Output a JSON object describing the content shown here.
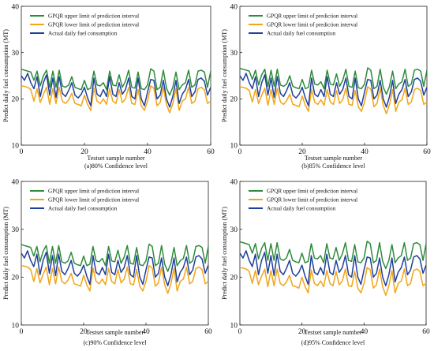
{
  "colors": {
    "upper": "#2e8b3a",
    "lower": "#f2a516",
    "actual": "#1f3f9a",
    "axis": "#222222"
  },
  "chart_data": [
    {
      "type": "line",
      "caption": "(a)80% Confidence level",
      "xlabel": "Testset sample number",
      "ylabel": "Predict daily fuel consumption (MT)",
      "xlim": [
        0,
        60
      ],
      "ylim": [
        10,
        40
      ],
      "xticks": [
        0,
        20,
        40,
        60
      ],
      "yticks": [
        10,
        20,
        30,
        40
      ],
      "legend_position": "top-left",
      "series": [
        {
          "name": "GPQR upper limit of prediction interval",
          "values": [
            26.4,
            26.2,
            26.0,
            25.8,
            24.0,
            26.0,
            22.8,
            25.0,
            26.2,
            22.5,
            26.0,
            22.5,
            26.2,
            22.8,
            22.5,
            23.0,
            24.8,
            22.5,
            22.2,
            22.0,
            24.0,
            22.0,
            22.3,
            26.0,
            23.0,
            22.8,
            23.5,
            22.0,
            26.0,
            23.0,
            22.8,
            25.2,
            22.5,
            23.8,
            26.2,
            22.5,
            22.3,
            25.8,
            22.2,
            22.0,
            23.0,
            26.5,
            26.0,
            22.0,
            22.5,
            26.2,
            22.3,
            20.8,
            22.5,
            25.8,
            22.0,
            23.0,
            23.5,
            26.2,
            22.5,
            23.0,
            26.0,
            26.2,
            25.8,
            22.5,
            26.0
          ]
        },
        {
          "name": "GPQR lower limit of prediction interval",
          "values": [
            22.8,
            22.7,
            22.5,
            22.0,
            19.5,
            22.2,
            19.2,
            21.0,
            22.5,
            18.8,
            22.2,
            19.0,
            22.5,
            19.5,
            19.0,
            19.8,
            21.2,
            19.0,
            18.8,
            18.5,
            20.8,
            18.8,
            17.5,
            22.3,
            19.5,
            19.0,
            20.0,
            18.8,
            22.2,
            19.5,
            19.0,
            22.0,
            19.2,
            20.0,
            22.5,
            19.0,
            18.8,
            22.0,
            18.5,
            17.5,
            19.5,
            22.8,
            22.3,
            18.5,
            19.2,
            22.5,
            18.8,
            17.0,
            19.0,
            22.2,
            17.5,
            19.5,
            20.0,
            22.5,
            19.0,
            19.5,
            22.2,
            22.5,
            22.0,
            19.0,
            19.5
          ]
        },
        {
          "name": "Actual daily fuel consumption",
          "values": [
            25.0,
            24.0,
            25.5,
            23.5,
            22.2,
            24.8,
            20.5,
            23.5,
            25.2,
            20.8,
            24.5,
            20.3,
            24.8,
            21.2,
            20.5,
            21.8,
            23.5,
            20.8,
            20.2,
            21.0,
            22.5,
            20.2,
            18.5,
            24.5,
            21.0,
            20.5,
            22.0,
            20.5,
            24.8,
            21.0,
            20.5,
            23.5,
            21.0,
            22.0,
            24.5,
            20.5,
            20.0,
            24.5,
            20.0,
            18.5,
            21.5,
            24.2,
            24.0,
            20.0,
            20.8,
            24.0,
            20.0,
            18.2,
            20.5,
            24.0,
            19.0,
            21.0,
            22.0,
            24.2,
            20.5,
            21.5,
            24.2,
            24.5,
            23.8,
            20.8,
            22.5
          ]
        }
      ]
    },
    {
      "type": "line",
      "caption": "(b)85% Confidence level",
      "xlabel": "Testset sample number",
      "ylabel": "Predict daily fuel consumption (MT)",
      "xlim": [
        0,
        60
      ],
      "ylim": [
        10,
        40
      ],
      "xticks": [
        0,
        20,
        40,
        60
      ],
      "yticks": [
        10,
        20,
        30,
        40
      ],
      "legend_position": "top-left",
      "series": [
        {
          "name": "GPQR upper limit of prediction interval",
          "values": [
            26.6,
            26.4,
            26.2,
            26.0,
            24.2,
            26.2,
            23.0,
            25.2,
            26.4,
            22.7,
            26.2,
            22.7,
            26.4,
            23.0,
            22.7,
            23.2,
            25.0,
            22.7,
            22.4,
            22.2,
            24.2,
            22.2,
            22.5,
            26.2,
            23.2,
            23.0,
            23.7,
            22.2,
            26.2,
            23.2,
            23.0,
            25.4,
            22.7,
            24.0,
            26.4,
            22.7,
            22.5,
            26.0,
            22.4,
            22.2,
            23.2,
            26.7,
            26.2,
            22.2,
            22.7,
            26.4,
            22.5,
            21.0,
            22.7,
            26.0,
            22.2,
            23.2,
            23.7,
            26.4,
            22.7,
            23.2,
            26.2,
            26.4,
            26.0,
            22.7,
            26.2
          ]
        },
        {
          "name": "GPQR lower limit of prediction interval",
          "values": [
            22.6,
            22.5,
            22.3,
            21.8,
            19.3,
            22.0,
            19.0,
            20.8,
            22.3,
            18.6,
            22.0,
            18.8,
            22.3,
            19.3,
            18.8,
            19.6,
            21.0,
            18.8,
            18.6,
            18.3,
            20.6,
            18.6,
            17.3,
            22.1,
            19.3,
            18.8,
            19.8,
            18.6,
            22.0,
            19.3,
            18.8,
            21.8,
            19.0,
            19.8,
            22.3,
            18.8,
            18.6,
            21.8,
            18.3,
            17.3,
            19.3,
            22.6,
            22.1,
            18.3,
            19.0,
            22.3,
            18.6,
            16.8,
            18.8,
            22.0,
            17.3,
            19.3,
            19.8,
            22.3,
            18.8,
            19.3,
            22.0,
            22.3,
            21.8,
            18.8,
            19.3
          ]
        },
        {
          "name": "Actual daily fuel consumption",
          "values": [
            25.0,
            24.0,
            25.5,
            23.5,
            22.2,
            24.8,
            20.5,
            23.5,
            25.2,
            20.8,
            24.5,
            20.3,
            24.8,
            21.2,
            20.5,
            21.8,
            23.5,
            20.8,
            20.2,
            21.0,
            22.5,
            20.2,
            18.5,
            24.5,
            21.0,
            20.5,
            22.0,
            20.5,
            24.8,
            21.0,
            20.5,
            23.5,
            21.0,
            22.0,
            24.5,
            20.5,
            20.0,
            24.5,
            20.0,
            18.5,
            21.5,
            24.2,
            24.0,
            20.0,
            20.8,
            24.0,
            20.0,
            18.2,
            20.5,
            24.0,
            19.0,
            21.0,
            22.0,
            24.2,
            20.5,
            21.5,
            24.2,
            24.5,
            23.8,
            20.8,
            22.5
          ]
        }
      ]
    },
    {
      "type": "line",
      "caption": "(c)90% Confidence level",
      "xlabel": "Testset sample number",
      "ylabel": "Predict daily fuel consumption (MT)",
      "xlim": [
        0,
        60
      ],
      "ylim": [
        10,
        40
      ],
      "xticks": [
        0,
        20,
        40,
        60
      ],
      "yticks": [
        10,
        20,
        30,
        40
      ],
      "legend_position": "top-left",
      "series": [
        {
          "name": "GPQR upper limit of prediction interval",
          "values": [
            26.8,
            26.6,
            26.4,
            26.2,
            24.4,
            26.4,
            23.2,
            25.4,
            26.6,
            22.9,
            26.4,
            22.9,
            26.6,
            23.2,
            22.9,
            23.4,
            25.2,
            22.9,
            22.6,
            22.4,
            24.4,
            22.4,
            22.7,
            26.4,
            23.4,
            23.2,
            23.9,
            22.4,
            26.4,
            23.4,
            23.2,
            25.6,
            22.9,
            24.2,
            26.6,
            22.9,
            22.7,
            26.2,
            22.6,
            22.4,
            23.4,
            26.9,
            26.4,
            22.4,
            22.9,
            26.6,
            22.7,
            21.2,
            22.9,
            26.2,
            22.4,
            23.4,
            23.9,
            26.6,
            22.9,
            23.4,
            26.4,
            26.6,
            26.2,
            22.9,
            26.4
          ]
        },
        {
          "name": "GPQR lower limit of prediction interval",
          "values": [
            22.4,
            22.3,
            22.1,
            21.6,
            19.1,
            21.8,
            18.8,
            20.6,
            22.1,
            18.4,
            21.8,
            18.6,
            22.1,
            19.1,
            18.6,
            19.4,
            20.8,
            18.6,
            18.4,
            18.1,
            20.4,
            18.4,
            17.1,
            21.9,
            19.1,
            18.6,
            19.6,
            18.4,
            21.8,
            19.1,
            18.6,
            21.6,
            18.8,
            19.6,
            22.1,
            18.6,
            18.4,
            21.6,
            18.1,
            17.1,
            19.1,
            22.4,
            21.9,
            18.1,
            18.8,
            22.1,
            18.4,
            16.6,
            18.6,
            21.8,
            17.1,
            19.1,
            19.6,
            22.1,
            18.6,
            19.1,
            21.8,
            22.1,
            21.6,
            18.6,
            19.1
          ]
        },
        {
          "name": "Actual daily fuel consumption",
          "values": [
            25.0,
            24.0,
            25.5,
            23.5,
            22.2,
            24.8,
            20.5,
            23.5,
            25.2,
            20.8,
            24.5,
            20.3,
            24.8,
            21.2,
            20.5,
            21.8,
            23.5,
            20.8,
            20.2,
            21.0,
            22.5,
            20.2,
            18.5,
            24.5,
            21.0,
            20.5,
            22.0,
            20.5,
            24.8,
            21.0,
            20.5,
            23.5,
            21.0,
            22.0,
            24.5,
            20.5,
            20.0,
            24.5,
            20.0,
            18.5,
            21.5,
            24.2,
            24.0,
            20.0,
            20.8,
            24.0,
            20.0,
            18.2,
            20.5,
            24.0,
            19.0,
            21.0,
            22.0,
            24.2,
            20.5,
            21.5,
            24.2,
            24.5,
            23.8,
            20.8,
            22.5
          ]
        }
      ]
    },
    {
      "type": "line",
      "caption": "(d)95% Confidence level",
      "xlabel": "Testset sample number",
      "ylabel": "Predict daily fuel consumption (MT)",
      "xlim": [
        0,
        60
      ],
      "ylim": [
        10,
        40
      ],
      "xticks": [
        0,
        20,
        40,
        60
      ],
      "yticks": [
        10,
        20,
        30,
        40
      ],
      "legend_position": "top-left",
      "series": [
        {
          "name": "GPQR upper limit of prediction interval",
          "values": [
            27.4,
            27.2,
            27.0,
            26.8,
            25.0,
            27.0,
            23.8,
            26.0,
            27.2,
            23.5,
            27.0,
            23.5,
            27.2,
            23.8,
            23.5,
            24.0,
            25.8,
            23.5,
            23.2,
            23.0,
            25.0,
            23.0,
            23.3,
            27.0,
            24.0,
            23.8,
            24.5,
            23.0,
            27.0,
            24.0,
            23.8,
            26.2,
            23.5,
            24.8,
            27.2,
            23.5,
            23.3,
            26.8,
            23.2,
            23.0,
            24.0,
            27.5,
            27.0,
            23.0,
            23.5,
            27.2,
            23.3,
            21.8,
            23.5,
            26.8,
            23.0,
            24.0,
            24.5,
            27.2,
            23.5,
            24.0,
            27.0,
            27.2,
            26.8,
            23.5,
            27.0
          ]
        },
        {
          "name": "GPQR lower limit of prediction interval",
          "values": [
            22.0,
            21.9,
            21.7,
            21.2,
            18.7,
            21.4,
            18.4,
            20.2,
            21.7,
            18.0,
            21.4,
            18.2,
            21.7,
            18.7,
            18.2,
            19.0,
            20.4,
            18.2,
            18.0,
            17.7,
            20.0,
            18.0,
            16.7,
            21.5,
            18.7,
            18.2,
            19.2,
            18.0,
            21.4,
            18.7,
            18.2,
            21.2,
            18.4,
            19.2,
            21.7,
            18.2,
            18.0,
            21.2,
            17.7,
            16.7,
            18.7,
            22.0,
            21.5,
            17.7,
            18.4,
            21.7,
            18.0,
            16.2,
            18.2,
            21.4,
            16.7,
            18.7,
            19.2,
            21.7,
            18.2,
            18.7,
            21.4,
            21.7,
            21.2,
            18.2,
            18.7
          ]
        },
        {
          "name": "Actual daily fuel consumption",
          "values": [
            25.0,
            24.0,
            25.5,
            23.5,
            22.2,
            24.8,
            20.5,
            23.5,
            25.2,
            20.8,
            24.5,
            20.3,
            24.8,
            21.2,
            20.5,
            21.8,
            23.5,
            20.8,
            20.2,
            21.0,
            22.5,
            20.2,
            18.5,
            24.5,
            21.0,
            20.5,
            22.0,
            20.5,
            24.8,
            21.0,
            20.5,
            23.5,
            21.0,
            22.0,
            24.5,
            20.5,
            20.0,
            24.5,
            20.0,
            18.5,
            21.5,
            24.2,
            24.0,
            20.0,
            20.8,
            24.0,
            20.0,
            18.2,
            20.5,
            24.0,
            19.0,
            21.0,
            22.0,
            24.2,
            20.5,
            21.5,
            24.2,
            24.5,
            23.8,
            20.8,
            22.5
          ]
        }
      ]
    }
  ]
}
